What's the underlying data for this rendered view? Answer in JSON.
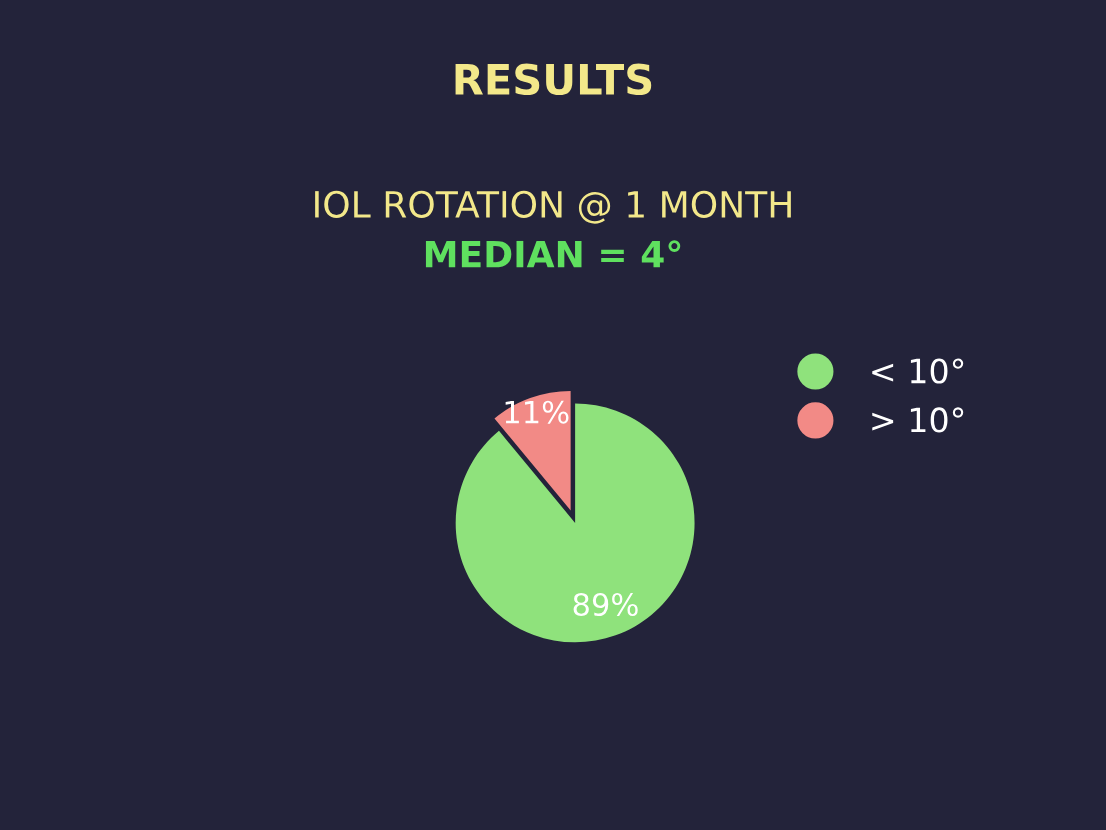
{
  "chart_data": {
    "type": "pie",
    "title": "RESULTS",
    "subtitle": "IOL ROTATION @ 1 MONTH",
    "annotations": [
      "MEDIAN = 4°"
    ],
    "categories": [
      "< 10°",
      "> 10°"
    ],
    "values": [
      89,
      11
    ],
    "colors": [
      "#8fe27c",
      "#f28a86"
    ],
    "value_labels": [
      "89%",
      "11%"
    ],
    "legend": "right"
  }
}
